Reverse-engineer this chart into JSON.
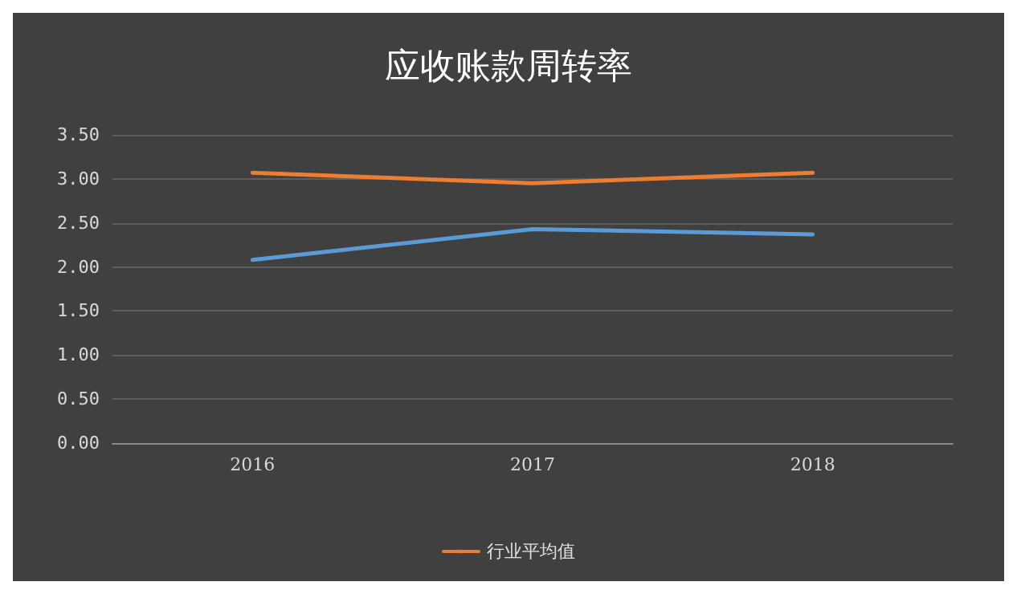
{
  "chart_data": {
    "type": "line",
    "title": "应收账款周转率",
    "categories": [
      "2016",
      "2017",
      "2018"
    ],
    "series": [
      {
        "color": "#5b9bd5",
        "values": [
          2.08,
          2.43,
          2.37
        ]
      },
      {
        "name": "行业平均值",
        "color": "#ed7d31",
        "values": [
          3.07,
          2.95,
          3.07
        ]
      }
    ],
    "ylim": [
      0,
      3.5
    ],
    "yticks": [
      {
        "value": 0,
        "label": "0.00"
      },
      {
        "value": 0.5,
        "label": "0.50"
      },
      {
        "value": 1,
        "label": "1.00"
      },
      {
        "value": 1.5,
        "label": "1.50"
      },
      {
        "value": 2,
        "label": "2.00"
      },
      {
        "value": 2.5,
        "label": "2.50"
      },
      {
        "value": 3,
        "label": "3.00"
      },
      {
        "value": 3.5,
        "label": "3.50"
      }
    ],
    "grid": "y",
    "legend": "bottom",
    "marker": "none",
    "line_style": "solid"
  }
}
